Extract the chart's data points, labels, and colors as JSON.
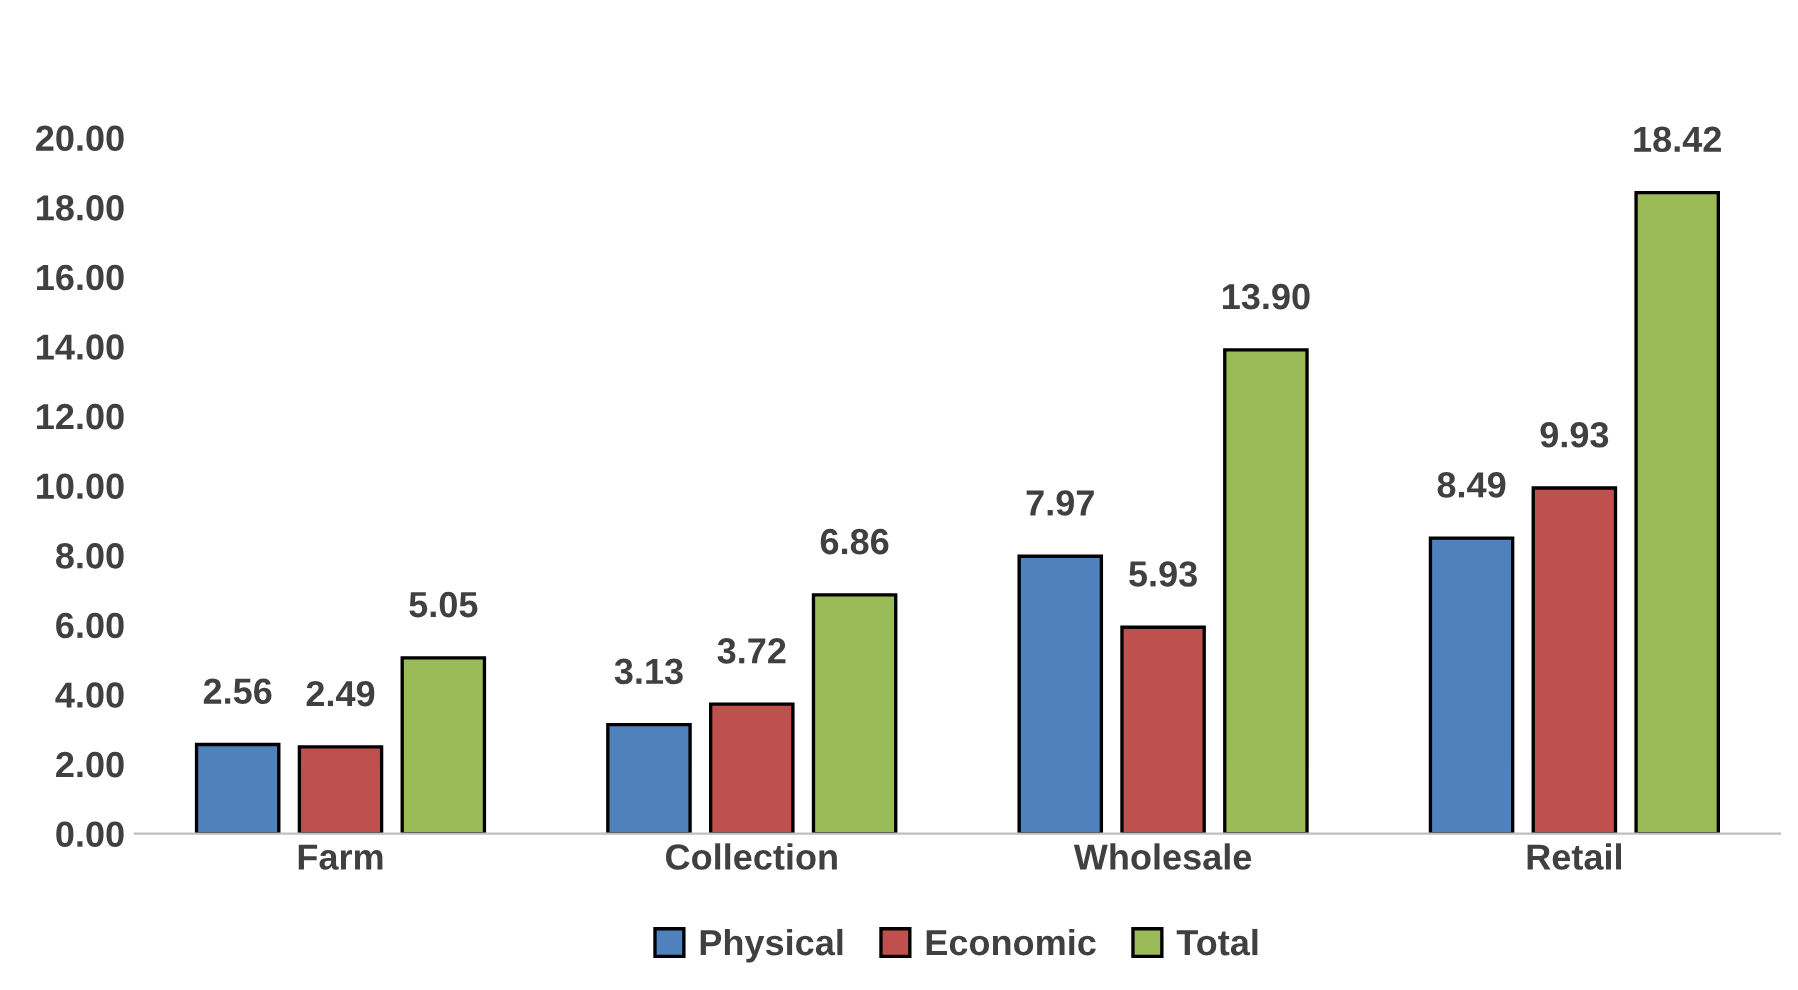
{
  "chart_data": {
    "type": "bar",
    "categories": [
      "Farm",
      "Collection",
      "Wholesale",
      "Retail"
    ],
    "series": [
      {
        "name": "Physical",
        "color": "#4f81bd",
        "values": [
          2.56,
          3.13,
          7.97,
          8.49
        ],
        "value_labels": [
          "2.56",
          "3.13",
          "7.97",
          "8.49"
        ]
      },
      {
        "name": "Economic",
        "color": "#c0504d",
        "values": [
          2.49,
          3.72,
          5.93,
          9.93
        ],
        "value_labels": [
          "2.49",
          "3.72",
          "5.93",
          "9.93"
        ]
      },
      {
        "name": "Total",
        "color": "#9bbb59",
        "values": [
          5.05,
          6.86,
          13.9,
          18.42
        ],
        "value_labels": [
          "5.05",
          "6.86",
          "13.90",
          "18.42"
        ]
      }
    ],
    "ylim": [
      0,
      20
    ],
    "yticks": [
      {
        "value": 0,
        "label": "0.00"
      },
      {
        "value": 2,
        "label": "2.00"
      },
      {
        "value": 4,
        "label": "4.00"
      },
      {
        "value": 6,
        "label": "6.00"
      },
      {
        "value": 8,
        "label": "8.00"
      },
      {
        "value": 10,
        "label": "10.00"
      },
      {
        "value": 12,
        "label": "12.00"
      },
      {
        "value": 14,
        "label": "14.00"
      },
      {
        "value": 16,
        "label": "16.00"
      },
      {
        "value": 18,
        "label": "18.00"
      },
      {
        "value": 20,
        "label": "20.00"
      }
    ],
    "grid": false,
    "legend": "bottom"
  }
}
